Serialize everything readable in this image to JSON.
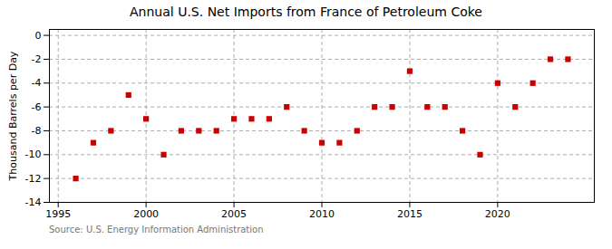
{
  "chart_data": {
    "type": "scatter",
    "title": "Annual U.S. Net Imports from France of Petroleum Coke",
    "ylabel": "Thousand Barrels per Day",
    "annotations": [
      "Source: U.S. Energy Information Administration"
    ],
    "x": [
      1996,
      1997,
      1998,
      1999,
      2000,
      2001,
      2002,
      2003,
      2004,
      2005,
      2006,
      2007,
      2008,
      2009,
      2010,
      2011,
      2012,
      2013,
      2014,
      2015,
      2016,
      2017,
      2018,
      2019,
      2020,
      2021,
      2022,
      2023,
      2024
    ],
    "values": [
      -12,
      -9,
      -8,
      -5,
      -7,
      -10,
      -8,
      -8,
      -8,
      -7,
      -7,
      -7,
      -6,
      -8,
      -9,
      -9,
      -8,
      -6,
      -6,
      -3,
      -6,
      -6,
      -8,
      -10,
      -4,
      -6,
      -4,
      -2,
      -2
    ],
    "color": "#cc0000",
    "marker": "square",
    "xlim": [
      1994.5,
      2025.5
    ],
    "xticks": [
      1995,
      2000,
      2005,
      2010,
      2015,
      2020
    ],
    "ylim": [
      -14,
      0.5
    ],
    "yticks": [
      0,
      -2,
      -4,
      -6,
      -8,
      -10,
      -12,
      -14
    ],
    "grid": true
  }
}
